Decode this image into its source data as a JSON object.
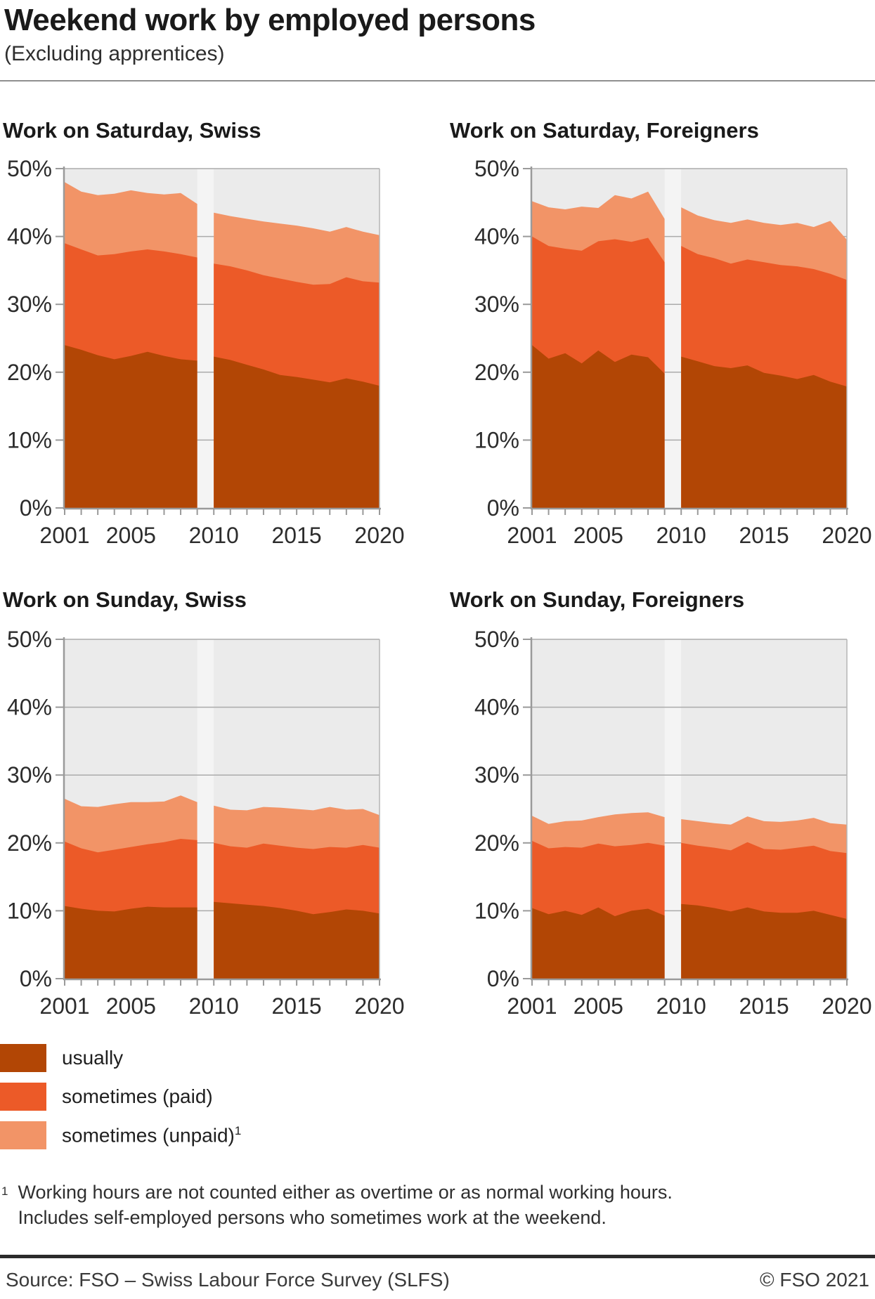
{
  "header": {
    "title": "Weekend work by employed persons",
    "subtitle": "(Excluding apprentices)"
  },
  "axes": {
    "y_tick_labels": [
      "0%",
      "10%",
      "20%",
      "30%",
      "40%",
      "50%"
    ],
    "x_tick_labels": [
      "2001",
      "2005",
      "2010",
      "2015",
      "2020"
    ],
    "x_range": [
      2001,
      2020
    ],
    "y_range": [
      0,
      50
    ],
    "grid": "horizontal"
  },
  "legend": {
    "position": "bottom-left",
    "items": [
      {
        "label": "usually",
        "color": "#b24605"
      },
      {
        "label": "sometimes (paid)",
        "color": "#ec5a28"
      },
      {
        "label": "sometimes (unpaid)",
        "superscript": "1",
        "color": "#f29467"
      }
    ]
  },
  "colors": {
    "plot_background": "#ebebeb",
    "gap_band": "#f4f4f4",
    "gridline": "#ababab",
    "axis": "#9a9a9a",
    "tick_text": "#2c2c2c"
  },
  "chart_data": [
    {
      "type": "area",
      "stacked": true,
      "title": "Work on Saturday, Swiss",
      "ylim": [
        0,
        50
      ],
      "segments": [
        {
          "years": [
            2001,
            2002,
            2003,
            2004,
            2005,
            2006,
            2007,
            2008,
            2009
          ],
          "series": [
            {
              "name": "usually",
              "values": [
                24.0,
                23.3,
                22.5,
                21.9,
                22.4,
                23.0,
                22.4,
                21.9,
                21.7
              ]
            },
            {
              "name": "sometimes (paid)",
              "values": [
                15.0,
                14.8,
                14.7,
                15.5,
                15.4,
                15.1,
                15.4,
                15.5,
                15.2
              ]
            },
            {
              "name": "sometimes (unpaid)",
              "values": [
                9.0,
                8.5,
                8.9,
                8.9,
                9.0,
                8.3,
                8.4,
                9.0,
                7.9
              ]
            }
          ]
        },
        {
          "years": [
            2010,
            2011,
            2012,
            2013,
            2014,
            2015,
            2016,
            2017,
            2018,
            2019,
            2020
          ],
          "series": [
            {
              "name": "usually",
              "values": [
                22.3,
                21.8,
                21.1,
                20.4,
                19.6,
                19.3,
                18.9,
                18.5,
                19.1,
                18.6,
                18.0
              ]
            },
            {
              "name": "sometimes (paid)",
              "values": [
                13.7,
                13.8,
                13.9,
                13.9,
                14.2,
                14.0,
                14.0,
                14.5,
                14.9,
                14.8,
                15.2
              ]
            },
            {
              "name": "sometimes (unpaid)",
              "values": [
                7.5,
                7.4,
                7.6,
                7.9,
                8.1,
                8.3,
                8.3,
                7.7,
                7.4,
                7.3,
                7.0
              ]
            }
          ]
        }
      ]
    },
    {
      "type": "area",
      "stacked": true,
      "title": "Work on Saturday, Foreigners",
      "ylim": [
        0,
        50
      ],
      "segments": [
        {
          "years": [
            2001,
            2002,
            2003,
            2004,
            2005,
            2006,
            2007,
            2008,
            2009
          ],
          "series": [
            {
              "name": "usually",
              "values": [
                24.0,
                22.0,
                22.8,
                21.3,
                23.2,
                21.5,
                22.6,
                22.2,
                19.8
              ]
            },
            {
              "name": "sometimes (paid)",
              "values": [
                16.0,
                16.6,
                15.4,
                16.6,
                16.1,
                18.1,
                16.6,
                17.6,
                16.4
              ]
            },
            {
              "name": "sometimes (unpaid)",
              "values": [
                5.2,
                5.7,
                5.8,
                6.5,
                4.9,
                6.5,
                6.4,
                6.8,
                6.4
              ]
            }
          ]
        },
        {
          "years": [
            2010,
            2011,
            2012,
            2013,
            2014,
            2015,
            2016,
            2017,
            2018,
            2019,
            2020
          ],
          "series": [
            {
              "name": "usually",
              "values": [
                22.3,
                21.6,
                20.9,
                20.6,
                21.0,
                19.9,
                19.5,
                19.0,
                19.6,
                18.6,
                17.9
              ]
            },
            {
              "name": "sometimes (paid)",
              "values": [
                16.3,
                15.8,
                15.9,
                15.4,
                15.6,
                16.3,
                16.3,
                16.6,
                15.6,
                15.9,
                15.7
              ]
            },
            {
              "name": "sometimes (unpaid)",
              "values": [
                5.7,
                5.7,
                5.6,
                6.0,
                5.9,
                5.8,
                5.9,
                6.4,
                6.2,
                7.8,
                5.9
              ]
            }
          ]
        }
      ]
    },
    {
      "type": "area",
      "stacked": true,
      "title": "Work on Sunday, Swiss",
      "ylim": [
        0,
        50
      ],
      "segments": [
        {
          "years": [
            2001,
            2002,
            2003,
            2004,
            2005,
            2006,
            2007,
            2008,
            2009
          ],
          "series": [
            {
              "name": "usually",
              "values": [
                10.7,
                10.3,
                10.0,
                9.9,
                10.3,
                10.6,
                10.5,
                10.5,
                10.5
              ]
            },
            {
              "name": "sometimes (paid)",
              "values": [
                9.5,
                8.9,
                8.6,
                9.1,
                9.1,
                9.2,
                9.6,
                10.1,
                9.9
              ]
            },
            {
              "name": "sometimes (unpaid)",
              "values": [
                6.3,
                6.2,
                6.7,
                6.7,
                6.6,
                6.2,
                6.0,
                6.4,
                5.6
              ]
            }
          ]
        },
        {
          "years": [
            2010,
            2011,
            2012,
            2013,
            2014,
            2015,
            2016,
            2017,
            2018,
            2019,
            2020
          ],
          "series": [
            {
              "name": "usually",
              "values": [
                11.3,
                11.1,
                10.9,
                10.7,
                10.4,
                10.0,
                9.5,
                9.8,
                10.2,
                10.0,
                9.6
              ]
            },
            {
              "name": "sometimes (paid)",
              "values": [
                8.7,
                8.4,
                8.4,
                9.2,
                9.2,
                9.3,
                9.6,
                9.6,
                9.1,
                9.7,
                9.7
              ]
            },
            {
              "name": "sometimes (unpaid)",
              "values": [
                5.5,
                5.4,
                5.5,
                5.4,
                5.6,
                5.7,
                5.7,
                5.9,
                5.6,
                5.3,
                4.8
              ]
            }
          ]
        }
      ]
    },
    {
      "type": "area",
      "stacked": true,
      "title": "Work on Sunday, Foreigners",
      "ylim": [
        0,
        50
      ],
      "segments": [
        {
          "years": [
            2001,
            2002,
            2003,
            2004,
            2005,
            2006,
            2007,
            2008,
            2009
          ],
          "series": [
            {
              "name": "usually",
              "values": [
                10.4,
                9.5,
                10.0,
                9.4,
                10.5,
                9.2,
                10.0,
                10.3,
                9.3
              ]
            },
            {
              "name": "sometimes (paid)",
              "values": [
                9.9,
                9.7,
                9.4,
                9.9,
                9.4,
                10.3,
                9.7,
                9.7,
                10.3
              ]
            },
            {
              "name": "sometimes (unpaid)",
              "values": [
                3.7,
                3.6,
                3.8,
                4.0,
                3.9,
                4.7,
                4.7,
                4.5,
                4.2
              ]
            }
          ]
        },
        {
          "years": [
            2010,
            2011,
            2012,
            2013,
            2014,
            2015,
            2016,
            2017,
            2018,
            2019,
            2020
          ],
          "series": [
            {
              "name": "usually",
              "values": [
                11.0,
                10.8,
                10.4,
                9.9,
                10.5,
                9.9,
                9.7,
                9.7,
                10.0,
                9.4,
                8.8
              ]
            },
            {
              "name": "sometimes (paid)",
              "values": [
                9.0,
                8.8,
                8.9,
                9.0,
                9.6,
                9.2,
                9.3,
                9.6,
                9.6,
                9.4,
                9.7
              ]
            },
            {
              "name": "sometimes (unpaid)",
              "values": [
                3.5,
                3.6,
                3.6,
                3.8,
                3.8,
                4.1,
                4.1,
                4.0,
                4.1,
                4.1,
                4.2
              ]
            }
          ]
        }
      ]
    }
  ],
  "footnote": {
    "marker": "1",
    "line1": "Working hours are not counted either as overtime or as normal working hours.",
    "line2": "Includes self-employed persons who sometimes work at the weekend."
  },
  "footer": {
    "source": "Source: FSO – Swiss Labour Force Survey (SLFS)",
    "copyright": "© FSO 2021"
  }
}
